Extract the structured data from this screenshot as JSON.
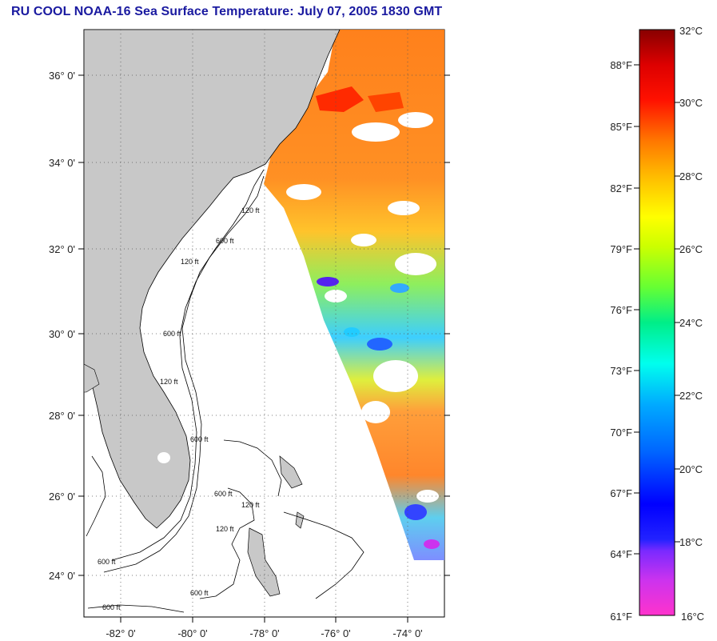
{
  "title": "RU COOL  NOAA-16  Sea Surface Temperature:  July 07, 2005 1830 GMT",
  "map": {
    "lon_range": [
      -83,
      -73
    ],
    "lat_range": [
      23,
      37
    ],
    "lat_labels": [
      "24° 0'",
      "26° 0'",
      "28° 0'",
      "30° 0'",
      "32° 0'",
      "34° 0'",
      "36° 0'"
    ],
    "lon_labels": [
      "-82° 0'",
      "-80° 0'",
      "-78° 0'",
      "-76° 0'",
      "-74° 0'"
    ],
    "grid": "dotted",
    "land_color": "#c8c8c8",
    "contour_labels": [
      "120 ft",
      "600 ft",
      "120 ft",
      "600 ft",
      "120 ft",
      "600 ft",
      "600 ft",
      "120 ft",
      "600 ft",
      "120 ft",
      "600 ft",
      "600 ft"
    ]
  },
  "colorbar": {
    "celsius_labels": [
      "32°C",
      "30°C",
      "28°C",
      "26°C",
      "24°C",
      "22°C",
      "20°C",
      "18°C",
      "16°C"
    ],
    "fahrenheit_labels": [
      "88°F",
      "85°F",
      "82°F",
      "79°F",
      "76°F",
      "73°F",
      "70°F",
      "67°F",
      "64°F",
      "61°F"
    ],
    "celsius_range": [
      16,
      32
    ]
  }
}
